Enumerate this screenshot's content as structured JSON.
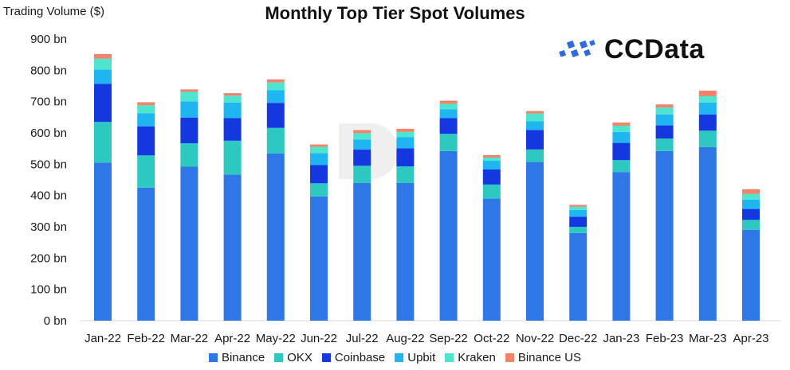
{
  "chart_data": {
    "type": "bar",
    "stacked": true,
    "title": "Monthly Top Tier Spot Volumes",
    "ylabel": "Trading Volume ($)",
    "ylim": [
      0,
      900
    ],
    "yticks": [
      "0 bn",
      "100 bn",
      "200 bn",
      "300 bn",
      "400 bn",
      "500 bn",
      "600 bn",
      "700 bn",
      "800 bn",
      "900 bn"
    ],
    "grid": false,
    "legend_position": "bottom",
    "categories": [
      "Jan-22",
      "Feb-22",
      "Mar-22",
      "Apr-22",
      "May-22",
      "Jun-22",
      "Jul-22",
      "Aug-22",
      "Sep-22",
      "Oct-22",
      "Nov-22",
      "Dec-22",
      "Jan-23",
      "Feb-23",
      "Mar-23",
      "Apr-23"
    ],
    "series": [
      {
        "name": "Binance",
        "color": "#2f77e6",
        "values": [
          505,
          425,
          492,
          467,
          534,
          397,
          440,
          440,
          542,
          390,
          507,
          280,
          475,
          542,
          555,
          290
        ]
      },
      {
        "name": "OKX",
        "color": "#2dc9c0",
        "values": [
          130,
          103,
          75,
          108,
          82,
          42,
          55,
          53,
          55,
          45,
          40,
          20,
          38,
          40,
          52,
          32
        ]
      },
      {
        "name": "Coinbase",
        "color": "#1537e0",
        "values": [
          122,
          93,
          82,
          72,
          80,
          58,
          52,
          58,
          50,
          48,
          62,
          32,
          55,
          42,
          52,
          35
        ]
      },
      {
        "name": "Upbit",
        "color": "#1fb5f0",
        "values": [
          45,
          42,
          52,
          50,
          40,
          38,
          32,
          35,
          28,
          28,
          28,
          22,
          35,
          35,
          38,
          30
        ]
      },
      {
        "name": "Kraken",
        "color": "#4de5d0",
        "values": [
          35,
          25,
          30,
          22,
          25,
          20,
          20,
          17,
          18,
          10,
          25,
          10,
          20,
          22,
          20,
          18
        ]
      },
      {
        "name": "Binance US",
        "color": "#f0836b",
        "values": [
          15,
          10,
          8,
          8,
          10,
          8,
          10,
          10,
          10,
          8,
          8,
          6,
          10,
          10,
          18,
          15
        ]
      }
    ]
  },
  "logo": {
    "text": "CCData"
  }
}
